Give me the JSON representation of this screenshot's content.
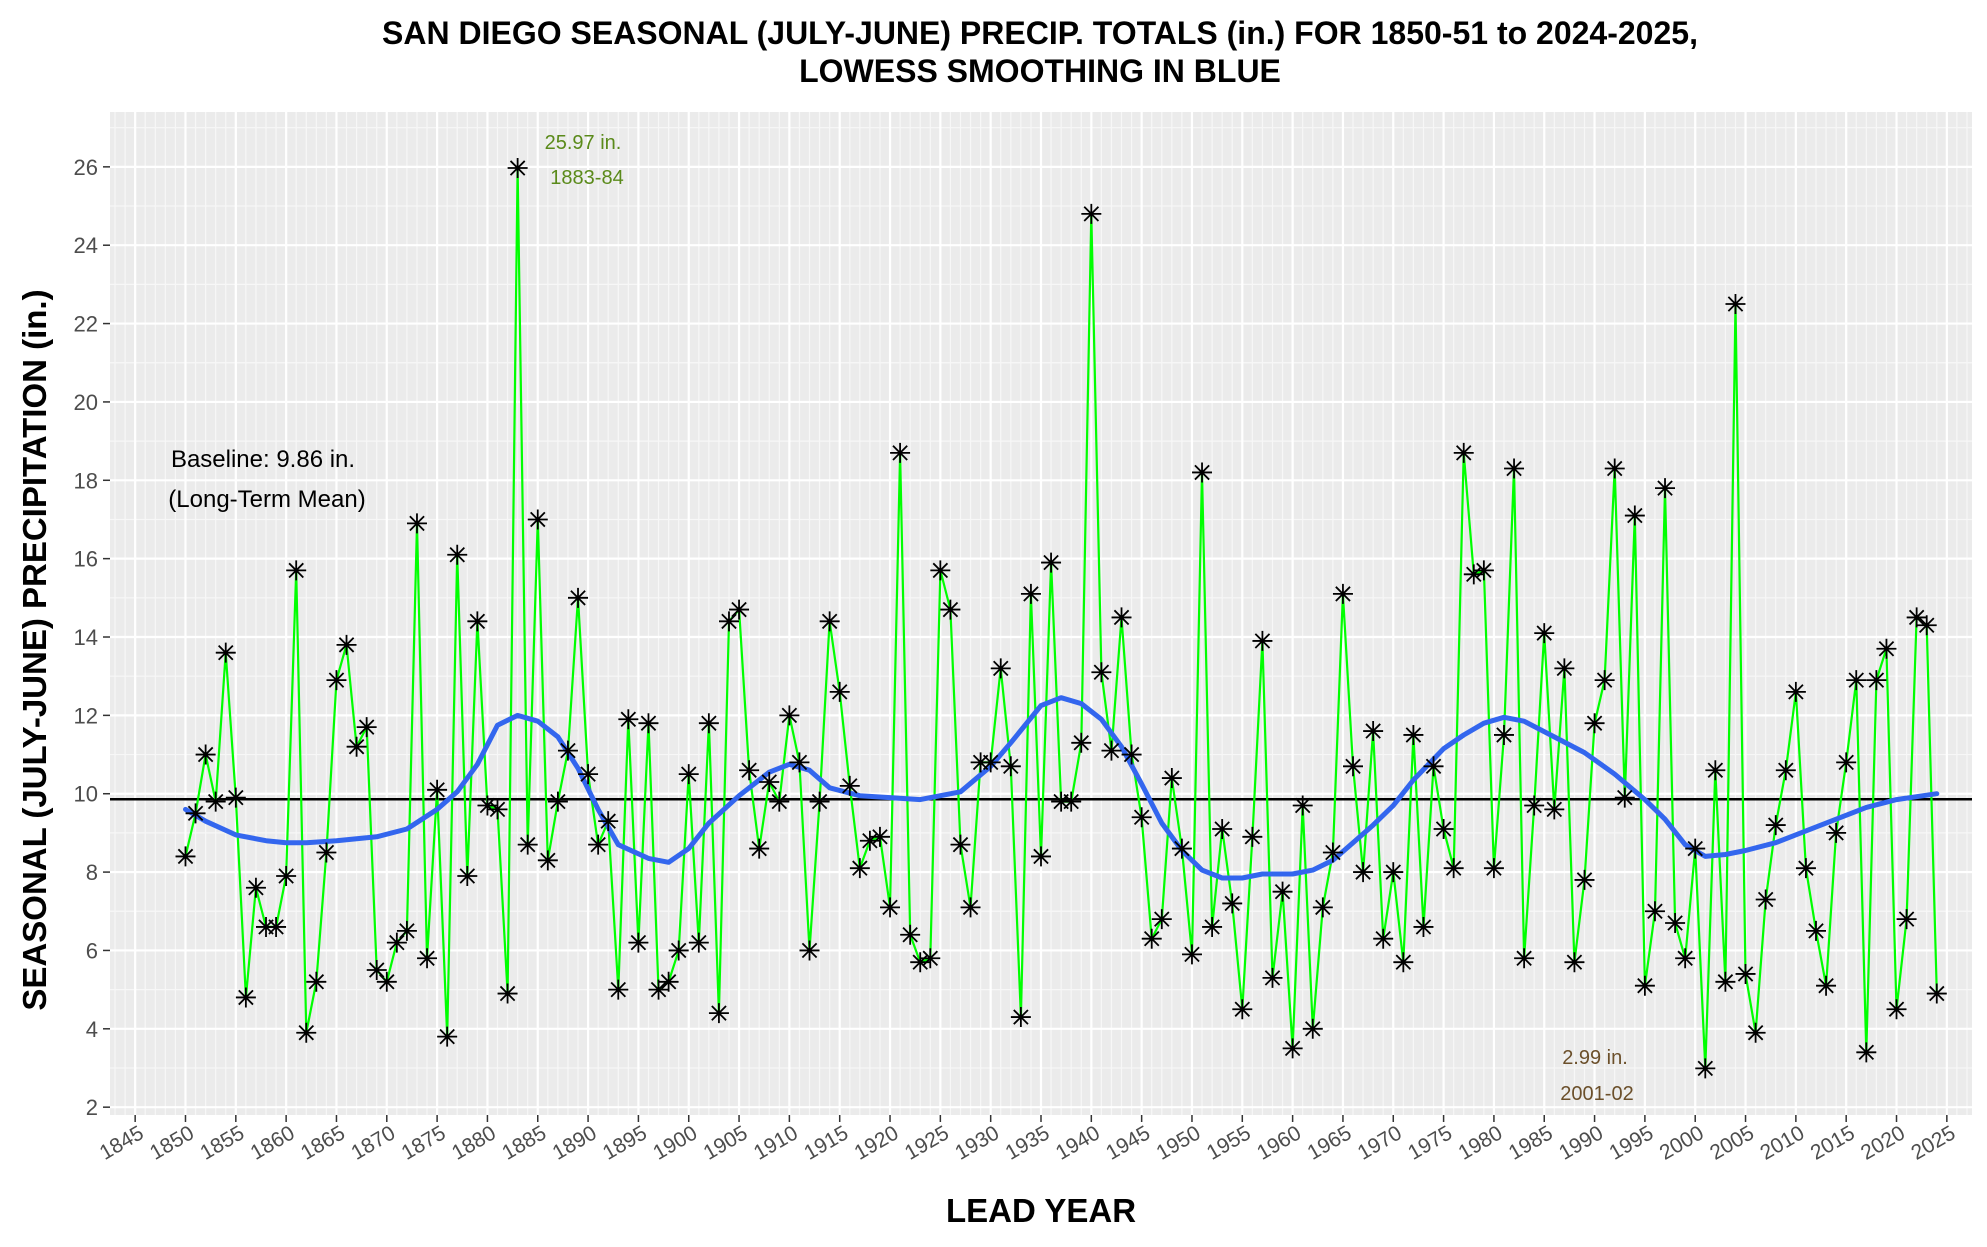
{
  "chart_data": {
    "type": "line",
    "title_line1": "SAN DIEGO SEASONAL (JULY-JUNE) PRECIP. TOTALS (in.) FOR 1850-51 to 2024-2025,",
    "title_line2": "LOWESS SMOOTHING IN BLUE",
    "xlabel": "LEAD YEAR",
    "ylabel": "SEASONAL (JULY-JUNE) PRECIPITATION (in.)",
    "xlim": [
      1842.5,
      2027.5
    ],
    "ylim": [
      1.8,
      27.4
    ],
    "x_ticks": [
      1845,
      1850,
      1855,
      1860,
      1865,
      1870,
      1875,
      1880,
      1885,
      1890,
      1895,
      1900,
      1905,
      1910,
      1915,
      1920,
      1925,
      1930,
      1935,
      1940,
      1945,
      1950,
      1955,
      1960,
      1965,
      1970,
      1975,
      1980,
      1985,
      1990,
      1995,
      2000,
      2005,
      2010,
      2015,
      2020,
      2025
    ],
    "y_ticks": [
      2,
      4,
      6,
      8,
      10,
      12,
      14,
      16,
      18,
      20,
      22,
      24,
      26
    ],
    "grid": true,
    "baseline": 9.86,
    "baseline_label_1": "Baseline: 9.86 in.",
    "baseline_label_2": "(Long-Term Mean)",
    "annotations": [
      {
        "text_value": "25.97 in.",
        "text_season": "1883-84",
        "x": 1883,
        "y": 25.97,
        "color": "#5a8a1a"
      },
      {
        "text_value": "2.99 in.",
        "text_season": "2001-02",
        "x": 2001,
        "y": 2.99,
        "color": "#6b4f2a"
      }
    ],
    "series": [
      {
        "type": "line+markers",
        "color": "#00ff00",
        "marker": "asterisk",
        "x": [
          1850,
          1851,
          1852,
          1853,
          1854,
          1855,
          1856,
          1857,
          1858,
          1859,
          1860,
          1861,
          1862,
          1863,
          1864,
          1865,
          1866,
          1867,
          1868,
          1869,
          1870,
          1871,
          1872,
          1873,
          1874,
          1875,
          1876,
          1877,
          1878,
          1879,
          1880,
          1881,
          1882,
          1883,
          1884,
          1885,
          1886,
          1887,
          1888,
          1889,
          1890,
          1891,
          1892,
          1893,
          1894,
          1895,
          1896,
          1897,
          1898,
          1899,
          1900,
          1901,
          1902,
          1903,
          1904,
          1905,
          1906,
          1907,
          1908,
          1909,
          1910,
          1911,
          1912,
          1913,
          1914,
          1915,
          1916,
          1917,
          1918,
          1919,
          1920,
          1921,
          1922,
          1923,
          1924,
          1925,
          1926,
          1927,
          1928,
          1929,
          1930,
          1931,
          1932,
          1933,
          1934,
          1935,
          1936,
          1937,
          1938,
          1939,
          1940,
          1941,
          1942,
          1943,
          1944,
          1945,
          1946,
          1947,
          1948,
          1949,
          1950,
          1951,
          1952,
          1953,
          1954,
          1955,
          1956,
          1957,
          1958,
          1959,
          1960,
          1961,
          1962,
          1963,
          1964,
          1965,
          1966,
          1967,
          1968,
          1969,
          1970,
          1971,
          1972,
          1973,
          1974,
          1975,
          1976,
          1977,
          1978,
          1979,
          1980,
          1981,
          1982,
          1983,
          1984,
          1985,
          1986,
          1987,
          1988,
          1989,
          1990,
          1991,
          1992,
          1993,
          1994,
          1995,
          1996,
          1997,
          1998,
          1999,
          2000,
          2001,
          2002,
          2003,
          2004,
          2005,
          2006,
          2007,
          2008,
          2009,
          2010,
          2011,
          2012,
          2013,
          2014,
          2015,
          2016,
          2017,
          2018,
          2019,
          2020,
          2021,
          2022,
          2023,
          2024
        ],
        "values": [
          8.4,
          9.5,
          11.0,
          9.8,
          13.6,
          9.9,
          4.8,
          7.6,
          6.6,
          6.6,
          7.9,
          15.7,
          3.9,
          5.2,
          8.5,
          12.9,
          13.8,
          11.2,
          11.7,
          5.5,
          5.2,
          6.2,
          6.5,
          16.9,
          5.8,
          10.1,
          3.8,
          16.1,
          7.9,
          14.4,
          9.7,
          9.6,
          4.9,
          25.97,
          8.7,
          17.0,
          8.3,
          9.8,
          11.1,
          15.0,
          10.5,
          8.7,
          9.3,
          5.0,
          11.9,
          6.2,
          11.8,
          5.0,
          5.2,
          6.0,
          10.5,
          6.2,
          11.8,
          4.4,
          14.4,
          14.7,
          10.6,
          8.6,
          10.3,
          9.8,
          12.0,
          10.8,
          6.0,
          9.8,
          14.4,
          12.6,
          10.2,
          8.1,
          8.8,
          8.9,
          7.1,
          18.7,
          6.4,
          5.7,
          5.8,
          15.7,
          14.7,
          8.7,
          7.1,
          10.8,
          10.8,
          13.2,
          10.7,
          4.3,
          15.1,
          8.4,
          15.9,
          9.8,
          9.8,
          11.3,
          24.8,
          13.1,
          11.1,
          14.5,
          11.0,
          9.4,
          6.3,
          6.8,
          10.4,
          8.6,
          5.9,
          18.2,
          6.6,
          9.1,
          7.2,
          4.5,
          8.9,
          13.9,
          5.3,
          7.5,
          3.5,
          9.7,
          4.0,
          7.1,
          8.5,
          15.1,
          10.7,
          8.0,
          11.6,
          6.3,
          8.0,
          5.7,
          11.5,
          6.6,
          10.7,
          9.1,
          8.1,
          18.7,
          15.6,
          15.7,
          8.1,
          11.5,
          18.3,
          5.8,
          9.7,
          14.1,
          9.6,
          13.2,
          5.7,
          7.8,
          11.8,
          12.9,
          18.3,
          9.9,
          17.1,
          5.1,
          7.0,
          17.8,
          6.7,
          5.8,
          8.6,
          2.99,
          10.6,
          5.2,
          22.5,
          5.4,
          3.9,
          7.3,
          9.2,
          10.6,
          12.6,
          8.1,
          6.5,
          5.1,
          9.0,
          10.8,
          12.9,
          3.4,
          12.9,
          13.7,
          4.5,
          6.8,
          14.5,
          14.3,
          4.9
        ]
      },
      {
        "type": "smooth",
        "color": "#3366ee",
        "x": [
          1850,
          1852,
          1855,
          1858,
          1860,
          1862,
          1865,
          1869,
          1872,
          1875,
          1877,
          1879,
          1881,
          1883,
          1885,
          1887,
          1889,
          1891,
          1893,
          1896,
          1898,
          1900,
          1902,
          1905,
          1908,
          1910,
          1912,
          1914,
          1917,
          1920,
          1923,
          1925,
          1927,
          1930,
          1932,
          1935,
          1937,
          1939,
          1941,
          1943,
          1945,
          1947,
          1949,
          1951,
          1953,
          1955,
          1957,
          1960,
          1962,
          1964,
          1966,
          1968,
          1970,
          1972,
          1975,
          1977,
          1979,
          1981,
          1983,
          1986,
          1989,
          1992,
          1995,
          1997,
          1999,
          2001,
          2003,
          2005,
          2008,
          2011,
          2014,
          2017,
          2020,
          2024
        ],
        "values": [
          9.6,
          9.3,
          8.95,
          8.8,
          8.75,
          8.75,
          8.8,
          8.9,
          9.1,
          9.6,
          10.05,
          10.75,
          11.75,
          12.0,
          11.85,
          11.45,
          10.65,
          9.6,
          8.7,
          8.35,
          8.25,
          8.6,
          9.25,
          9.95,
          10.55,
          10.75,
          10.6,
          10.15,
          9.95,
          9.9,
          9.85,
          9.95,
          10.05,
          10.7,
          11.3,
          12.25,
          12.45,
          12.3,
          11.9,
          11.2,
          10.25,
          9.25,
          8.55,
          8.05,
          7.85,
          7.85,
          7.95,
          7.95,
          8.05,
          8.3,
          8.75,
          9.2,
          9.7,
          10.35,
          11.15,
          11.5,
          11.8,
          11.95,
          11.85,
          11.45,
          11.05,
          10.5,
          9.85,
          9.35,
          8.7,
          8.4,
          8.45,
          8.55,
          8.75,
          9.05,
          9.35,
          9.65,
          9.85,
          10.0
        ]
      }
    ]
  }
}
